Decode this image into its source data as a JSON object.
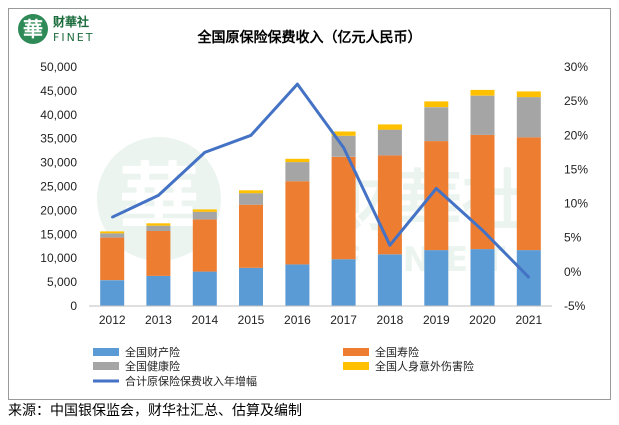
{
  "logo": {
    "glyph": "華",
    "cn": "财華社",
    "en": "FINET"
  },
  "watermark": {
    "cn": "财華社",
    "en": "FINET",
    "glyph": "華"
  },
  "source_note": "来源：中国银保监会，财华社汇总、估算及编制",
  "chart_data": {
    "type": "bar",
    "title": "全国原保险保费收入（亿元人民币）",
    "categories": [
      "2012",
      "2013",
      "2014",
      "2015",
      "2016",
      "2017",
      "2018",
      "2019",
      "2020",
      "2021"
    ],
    "stacked": true,
    "series": [
      {
        "name": "全国财产险",
        "color": "#5b9bd5",
        "values": [
          5400,
          6300,
          7200,
          8000,
          8700,
          9800,
          10800,
          11700,
          11900,
          11700
        ]
      },
      {
        "name": "全国寿险",
        "color": "#ed7d31",
        "values": [
          8900,
          9400,
          10900,
          13200,
          17400,
          21400,
          20700,
          22800,
          23900,
          23600
        ]
      },
      {
        "name": "全国健康险",
        "color": "#a5a5a5",
        "values": [
          900,
          1100,
          1600,
          2400,
          4000,
          4400,
          5400,
          7100,
          8200,
          8400
        ]
      },
      {
        "name": "全国人身意外伤害险",
        "color": "#ffc000",
        "values": [
          400,
          500,
          500,
          600,
          700,
          900,
          1100,
          1200,
          1200,
          1200
        ]
      },
      {
        "name": "合计原保险保费收入年增幅",
        "type": "line",
        "axis": "right",
        "color": "#4472c4",
        "values": [
          8.0,
          11.2,
          17.5,
          20.0,
          27.5,
          18.2,
          3.9,
          12.2,
          6.1,
          -0.8
        ]
      }
    ],
    "ylim_left": [
      0,
      50000
    ],
    "yticks_left": [
      "0",
      "5,000",
      "10,000",
      "15,000",
      "20,000",
      "25,000",
      "30,000",
      "35,000",
      "40,000",
      "45,000",
      "50,000"
    ],
    "ylim_right": [
      -5,
      30
    ],
    "yticks_right": [
      "-5%",
      "0%",
      "5%",
      "10%",
      "15%",
      "20%",
      "25%",
      "30%"
    ],
    "grid": false,
    "legend_position": "bottom"
  }
}
